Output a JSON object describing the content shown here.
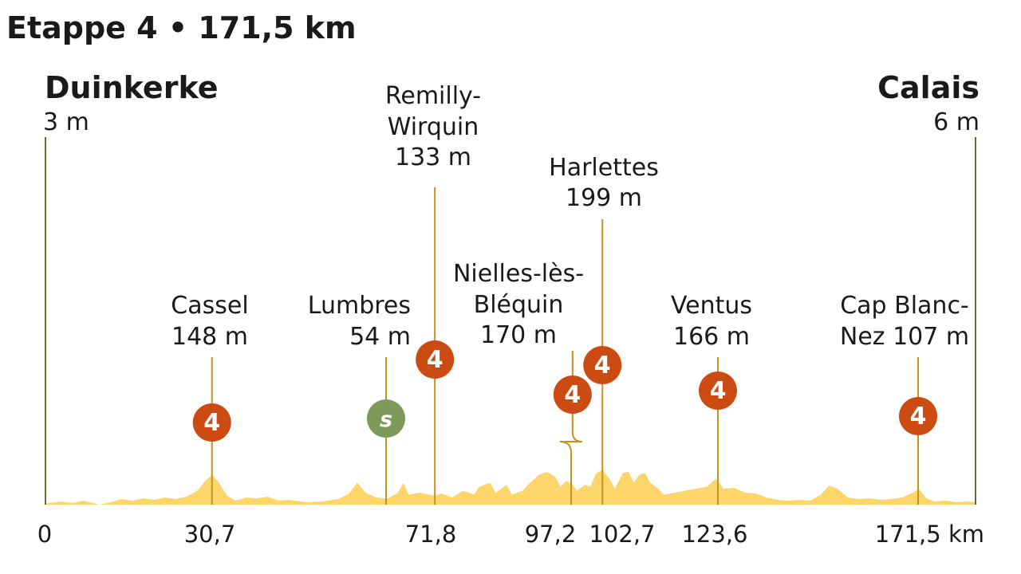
{
  "colors": {
    "profile_fill": "#fcd66a",
    "marker_line": "#c4941a",
    "end_line": "#6b6b3a",
    "climb_badge": "#cc4b12",
    "sprint_badge": "#7d9a5a",
    "text": "#1a1a1a"
  },
  "chart_data": {
    "type": "area",
    "title": "Etappe 4 • 171,5 km",
    "x_unit": "km",
    "xlim": [
      0,
      171.5
    ],
    "ylim": [
      0,
      210
    ],
    "start": {
      "name": "Duinkerke",
      "elevation": "3 m",
      "km": 0
    },
    "finish": {
      "name": "Calais",
      "elevation": "6 m",
      "km": 171.5
    },
    "x_tick_labels": [
      {
        "km": 0,
        "label": "0"
      },
      {
        "km": 30.7,
        "label": "30,7"
      },
      {
        "km": 71.8,
        "label": "71,8"
      },
      {
        "km": 97.2,
        "label": "97,2"
      },
      {
        "km": 102.7,
        "label": "102,7"
      },
      {
        "km": 123.6,
        "label": "123,6"
      },
      {
        "km": 171.5,
        "label": "171,5 km"
      }
    ],
    "markers": [
      {
        "km": 30.7,
        "type": "climb",
        "category": "4",
        "label_lines": [
          "Cassel",
          "148 m"
        ]
      },
      {
        "km": 63.0,
        "type": "sprint",
        "category": "S",
        "label_lines": [
          "Lumbres",
          "54 m"
        ]
      },
      {
        "km": 71.8,
        "type": "climb",
        "category": "4",
        "label_lines": [
          "Remilly-",
          "Wirquin",
          "133 m"
        ]
      },
      {
        "km": 97.2,
        "type": "climb",
        "category": "4",
        "label_lines": [
          "Nielles-lès-",
          "Bléquin",
          "170 m"
        ]
      },
      {
        "km": 102.7,
        "type": "climb",
        "category": "4",
        "label_lines": [
          "Harlettes",
          "199 m"
        ]
      },
      {
        "km": 123.6,
        "type": "climb",
        "category": "4",
        "label_lines": [
          "Ventus",
          "166 m"
        ]
      },
      {
        "km": 161.0,
        "type": "climb",
        "category": "4",
        "label_lines": [
          "Cap Blanc-",
          "Nez 107 m"
        ]
      }
    ],
    "profile": [
      {
        "km": 0,
        "m": 3
      },
      {
        "km": 3,
        "m": 8
      },
      {
        "km": 5,
        "m": 4
      },
      {
        "km": 7,
        "m": 10
      },
      {
        "km": 9,
        "m": 3
      },
      {
        "km": 10,
        "m": 0
      },
      {
        "km": 12,
        "m": 6
      },
      {
        "km": 14,
        "m": 14
      },
      {
        "km": 16,
        "m": 10
      },
      {
        "km": 18,
        "m": 16
      },
      {
        "km": 20,
        "m": 12
      },
      {
        "km": 22,
        "m": 18
      },
      {
        "km": 24,
        "m": 14
      },
      {
        "km": 26,
        "m": 20
      },
      {
        "km": 28,
        "m": 35
      },
      {
        "km": 29.5,
        "m": 60
      },
      {
        "km": 30.7,
        "m": 75
      },
      {
        "km": 32,
        "m": 55
      },
      {
        "km": 33.5,
        "m": 22
      },
      {
        "km": 35,
        "m": 10
      },
      {
        "km": 37,
        "m": 18
      },
      {
        "km": 39,
        "m": 16
      },
      {
        "km": 41,
        "m": 20
      },
      {
        "km": 43,
        "m": 10
      },
      {
        "km": 45,
        "m": 12
      },
      {
        "km": 48,
        "m": 6
      },
      {
        "km": 51,
        "m": 8
      },
      {
        "km": 54,
        "m": 14
      },
      {
        "km": 56,
        "m": 28
      },
      {
        "km": 57.5,
        "m": 55
      },
      {
        "km": 59,
        "m": 30
      },
      {
        "km": 61,
        "m": 18
      },
      {
        "km": 63,
        "m": 15
      },
      {
        "km": 65,
        "m": 30
      },
      {
        "km": 66,
        "m": 55
      },
      {
        "km": 67,
        "m": 25
      },
      {
        "km": 69,
        "m": 30
      },
      {
        "km": 71.8,
        "m": 22
      },
      {
        "km": 73,
        "m": 28
      },
      {
        "km": 75,
        "m": 18
      },
      {
        "km": 77,
        "m": 35
      },
      {
        "km": 79,
        "m": 25
      },
      {
        "km": 80,
        "m": 45
      },
      {
        "km": 82,
        "m": 55
      },
      {
        "km": 83,
        "m": 30
      },
      {
        "km": 85,
        "m": 50
      },
      {
        "km": 86,
        "m": 25
      },
      {
        "km": 88,
        "m": 35
      },
      {
        "km": 89,
        "m": 50
      },
      {
        "km": 91,
        "m": 75
      },
      {
        "km": 92.5,
        "m": 82
      },
      {
        "km": 94,
        "m": 70
      },
      {
        "km": 95,
        "m": 45
      },
      {
        "km": 96,
        "m": 60
      },
      {
        "km": 97.2,
        "m": 50
      },
      {
        "km": 98,
        "m": 35
      },
      {
        "km": 99.5,
        "m": 50
      },
      {
        "km": 100.5,
        "m": 45
      },
      {
        "km": 101.5,
        "m": 78
      },
      {
        "km": 102.7,
        "m": 88
      },
      {
        "km": 104,
        "m": 65
      },
      {
        "km": 105,
        "m": 40
      },
      {
        "km": 106.5,
        "m": 80
      },
      {
        "km": 107.5,
        "m": 82
      },
      {
        "km": 108.5,
        "m": 55
      },
      {
        "km": 109.5,
        "m": 75
      },
      {
        "km": 110.5,
        "m": 80
      },
      {
        "km": 111.5,
        "m": 55
      },
      {
        "km": 113,
        "m": 40
      },
      {
        "km": 114,
        "m": 25
      },
      {
        "km": 116,
        "m": 30
      },
      {
        "km": 118,
        "m": 35
      },
      {
        "km": 120,
        "m": 40
      },
      {
        "km": 122,
        "m": 45
      },
      {
        "km": 123.6,
        "m": 65
      },
      {
        "km": 125,
        "m": 40
      },
      {
        "km": 127,
        "m": 42
      },
      {
        "km": 129,
        "m": 30
      },
      {
        "km": 131,
        "m": 28
      },
      {
        "km": 133,
        "m": 18
      },
      {
        "km": 135,
        "m": 12
      },
      {
        "km": 137,
        "m": 10
      },
      {
        "km": 139,
        "m": 12
      },
      {
        "km": 141,
        "m": 10
      },
      {
        "km": 143,
        "m": 25
      },
      {
        "km": 144.5,
        "m": 48
      },
      {
        "km": 146,
        "m": 40
      },
      {
        "km": 148,
        "m": 18
      },
      {
        "km": 150,
        "m": 14
      },
      {
        "km": 152,
        "m": 16
      },
      {
        "km": 154,
        "m": 12
      },
      {
        "km": 156,
        "m": 14
      },
      {
        "km": 158,
        "m": 18
      },
      {
        "km": 160,
        "m": 30
      },
      {
        "km": 161,
        "m": 40
      },
      {
        "km": 162.5,
        "m": 15
      },
      {
        "km": 164,
        "m": 8
      },
      {
        "km": 166,
        "m": 10
      },
      {
        "km": 168,
        "m": 6
      },
      {
        "km": 170,
        "m": 8
      },
      {
        "km": 171.5,
        "m": 6
      }
    ]
  }
}
